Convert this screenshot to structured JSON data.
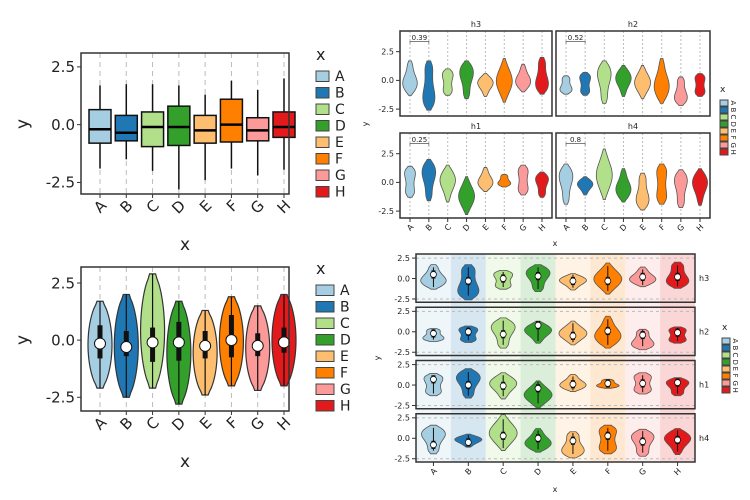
{
  "chart_data": [
    {
      "type": "box",
      "xlabel": "x",
      "ylabel": "y",
      "legend_title": "x",
      "legend": "right",
      "ylim": [
        -3.0,
        3.1
      ],
      "yticks": [
        2.5,
        0.0,
        -2.5
      ],
      "ytick_labels": [
        "2.5",
        "0.0",
        "-2.5"
      ],
      "categories": [
        "A",
        "B",
        "C",
        "D",
        "E",
        "F",
        "G",
        "H"
      ],
      "boxes": [
        {
          "q1": -0.8,
          "median": -0.2,
          "q3": 0.65,
          "low": -1.9,
          "high": 1.7
        },
        {
          "q1": -0.7,
          "median": -0.35,
          "q3": 0.4,
          "low": -1.5,
          "high": 1.75
        },
        {
          "q1": -0.95,
          "median": -0.1,
          "q3": 0.55,
          "low": -2.0,
          "high": 1.75
        },
        {
          "q1": -0.9,
          "median": -0.1,
          "q3": 0.8,
          "low": -2.8,
          "high": 1.7
        },
        {
          "q1": -0.8,
          "median": -0.25,
          "q3": 0.4,
          "low": -2.4,
          "high": 1.3
        },
        {
          "q1": -0.75,
          "median": 0.0,
          "q3": 1.1,
          "low": -1.9,
          "high": 1.9
        },
        {
          "q1": -0.7,
          "median": -0.25,
          "q3": 0.3,
          "low": -2.2,
          "high": 1.5
        },
        {
          "q1": -0.55,
          "median": -0.1,
          "q3": 0.55,
          "low": -1.95,
          "high": 2.0
        }
      ],
      "grid": "vertical dashed"
    },
    {
      "type": "violin",
      "xlabel": "x",
      "ylabel": "y",
      "legend_title": "x",
      "legend": "right",
      "ylim": [
        -3.1,
        3.2
      ],
      "yticks": [
        2.5,
        0.0,
        -2.5
      ],
      "ytick_labels": [
        "2.5",
        "0.0",
        "-2.5"
      ],
      "categories": [
        "A",
        "B",
        "C",
        "D",
        "E",
        "F",
        "G",
        "H"
      ],
      "violins": [
        {
          "min": -2.1,
          "max": 1.7,
          "median": -0.15,
          "q1": -0.8,
          "q3": 0.65
        },
        {
          "min": -2.5,
          "max": 2.0,
          "median": -0.3,
          "q1": -0.7,
          "q3": 0.4
        },
        {
          "min": -2.1,
          "max": 2.9,
          "median": -0.1,
          "q1": -0.95,
          "q3": 0.55
        },
        {
          "min": -2.8,
          "max": 1.7,
          "median": -0.1,
          "q1": -0.9,
          "q3": 0.8
        },
        {
          "min": -2.4,
          "max": 1.3,
          "median": -0.25,
          "q1": -0.8,
          "q3": 0.4
        },
        {
          "min": -2.0,
          "max": 1.9,
          "median": 0.0,
          "q1": -0.75,
          "q3": 1.1
        },
        {
          "min": -2.2,
          "max": 1.5,
          "median": -0.25,
          "q1": -0.7,
          "q3": 0.3
        },
        {
          "min": -2.0,
          "max": 2.0,
          "median": -0.1,
          "q1": -0.55,
          "q3": 0.55
        }
      ],
      "grid": "vertical dashed"
    },
    {
      "type": "violin-facet-grid",
      "xlabel": "x",
      "ylabel": "y",
      "legend_title": "x",
      "legend": "right",
      "ylim": [
        -3.1,
        4.3
      ],
      "yticks": [
        2.5,
        0.0,
        -2.5
      ],
      "ytick_labels": [
        "2.5",
        "0.0",
        "-2.5"
      ],
      "categories": [
        "A",
        "B",
        "C",
        "D",
        "E",
        "F",
        "G",
        "H"
      ],
      "facets": [
        {
          "name": "h3",
          "pvalue": "0.39",
          "ranges": [
            [
              -1.3,
              1.7
            ],
            [
              -2.6,
              1.7
            ],
            [
              -1.3,
              1.0
            ],
            [
              -1.6,
              1.7
            ],
            [
              -1.4,
              0.6
            ],
            [
              -1.9,
              1.9
            ],
            [
              -1.0,
              1.4
            ],
            [
              -1.2,
              2.0
            ]
          ]
        },
        {
          "name": "h2",
          "pvalue": "0.52",
          "ranges": [
            [
              -1.2,
              0.4
            ],
            [
              -1.3,
              0.7
            ],
            [
              -2.0,
              1.7
            ],
            [
              -1.4,
              1.3
            ],
            [
              -1.6,
              1.3
            ],
            [
              -2.0,
              1.9
            ],
            [
              -2.2,
              0.3
            ],
            [
              -1.4,
              0.6
            ]
          ]
        },
        {
          "name": "h1",
          "pvalue": "0.25",
          "ranges": [
            [
              -1.3,
              1.4
            ],
            [
              -1.6,
              2.0
            ],
            [
              -1.7,
              1.5
            ],
            [
              -2.8,
              0.5
            ],
            [
              -0.8,
              1.3
            ],
            [
              -0.4,
              0.7
            ],
            [
              -1.1,
              1.5
            ],
            [
              -1.3,
              0.9
            ]
          ]
        },
        {
          "name": "h4",
          "pvalue": "0.8",
          "ranges": [
            [
              -1.9,
              1.6
            ],
            [
              -1.1,
              0.5
            ],
            [
              -1.5,
              2.9
            ],
            [
              -1.7,
              1.2
            ],
            [
              -2.4,
              0.8
            ],
            [
              -1.9,
              1.6
            ],
            [
              -2.2,
              1.1
            ],
            [
              -2.0,
              1.2
            ]
          ]
        }
      ],
      "grid": "vertical dashed"
    },
    {
      "type": "violin-facet-rows",
      "xlabel": "x",
      "ylabel": "y",
      "legend_title": "x",
      "legend": "right",
      "ylim": [
        -2.9,
        3.0
      ],
      "yticks": [
        2.5,
        0.0,
        -2.5
      ],
      "ytick_labels": [
        "2.5",
        "0.0",
        "-2.5"
      ],
      "categories": [
        "A",
        "B",
        "C",
        "D",
        "E",
        "F",
        "G",
        "H"
      ],
      "rows": [
        {
          "name": "h3",
          "medians": [
            0.5,
            -0.3,
            0.0,
            0.3,
            -0.3,
            -0.3,
            0.2,
            0.2
          ]
        },
        {
          "name": "h2",
          "medians": [
            -0.2,
            0.0,
            -0.3,
            0.8,
            -0.5,
            0.1,
            -0.4,
            -0.1
          ]
        },
        {
          "name": "h1",
          "medians": [
            0.7,
            0.0,
            -0.1,
            -0.4,
            0.1,
            0.2,
            0.2,
            0.3
          ]
        },
        {
          "name": "h4",
          "medians": [
            -0.8,
            -0.5,
            0.3,
            0.0,
            -0.3,
            0.3,
            -0.4,
            -0.2
          ]
        }
      ],
      "background": "category-tinted columns",
      "grid": "horizontal dashed"
    }
  ],
  "colors": {
    "A": "#a6cee3",
    "B": "#1f78b4",
    "C": "#b2df8a",
    "D": "#33a02c",
    "E": "#fdbf6f",
    "F": "#ff7f00",
    "G": "#fb9a99",
    "H": "#e31a1c"
  }
}
